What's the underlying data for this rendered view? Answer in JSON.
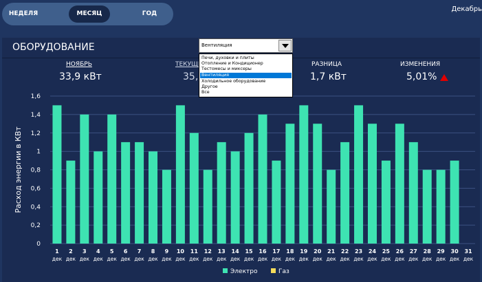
{
  "nav": {
    "tabs": [
      {
        "label": "НЕДЕЛЯ"
      },
      {
        "label": "МЕСЯЦ",
        "active": true
      },
      {
        "label": "ГОД"
      }
    ],
    "month": "Декабрь"
  },
  "panel": {
    "title": "ОБОРУДОВАНИЕ",
    "stats": {
      "prev_label": "НОЯБРЬ",
      "prev_value": "33,9 кВт",
      "current_label": "ТЕКУЩИ",
      "current_value": "35,",
      "diff_label": "РАЗНИЦА",
      "diff_value": "1,7 кВт",
      "change_label": "ИЗМЕНЕНИЯ",
      "change_value": "5,01%"
    },
    "trend_icon": "triangle-up-icon",
    "trend_color": "#e00000"
  },
  "dropdown": {
    "value": "Вентиляция",
    "options": [
      "Печи, духовки и плиты",
      "Отопление и Кондиционер",
      "Тестомесы и миксеры",
      "Вентиляция",
      "Холодильное оборудование",
      "Другое",
      "Все"
    ],
    "selected_index": 3,
    "selected_color": "#0078d7"
  },
  "chart_data": {
    "type": "bar",
    "ylabel": "Расход энергии в КВт",
    "ylim": [
      0,
      1.6
    ],
    "yticks": [
      "0",
      "0,2",
      "0,4",
      "0,6",
      "0,8",
      "1",
      "1,2",
      "1,4",
      "1,6"
    ],
    "categories": [
      "1",
      "2",
      "3",
      "4",
      "5",
      "6",
      "7",
      "8",
      "9",
      "10",
      "11",
      "12",
      "13",
      "14",
      "15",
      "16",
      "17",
      "18",
      "19",
      "20",
      "21",
      "22",
      "23",
      "24",
      "25",
      "26",
      "27",
      "28",
      "29",
      "30",
      "31"
    ],
    "category_unit": "дек",
    "grid": true,
    "legend_position": "bottom",
    "series": [
      {
        "name": "Электро",
        "color": "#3ee3b2",
        "values": [
          1.5,
          0.9,
          1.4,
          1.0,
          1.4,
          1.1,
          1.1,
          1.0,
          0.8,
          1.5,
          1.2,
          0.8,
          1.1,
          1.0,
          1.2,
          1.4,
          0.9,
          1.3,
          1.5,
          1.3,
          0.8,
          1.1,
          1.5,
          1.3,
          0.9,
          1.3,
          1.1,
          0.8,
          0.8,
          0.9,
          0
        ]
      },
      {
        "name": "Газ",
        "color": "#f5dc5a",
        "values": [
          0,
          0,
          0,
          0,
          0,
          0,
          0,
          0,
          0,
          0,
          0,
          0,
          0,
          0,
          0,
          0,
          0,
          0,
          0,
          0,
          0,
          0,
          0,
          0,
          0,
          0,
          0,
          0,
          0,
          0,
          0
        ]
      }
    ]
  }
}
